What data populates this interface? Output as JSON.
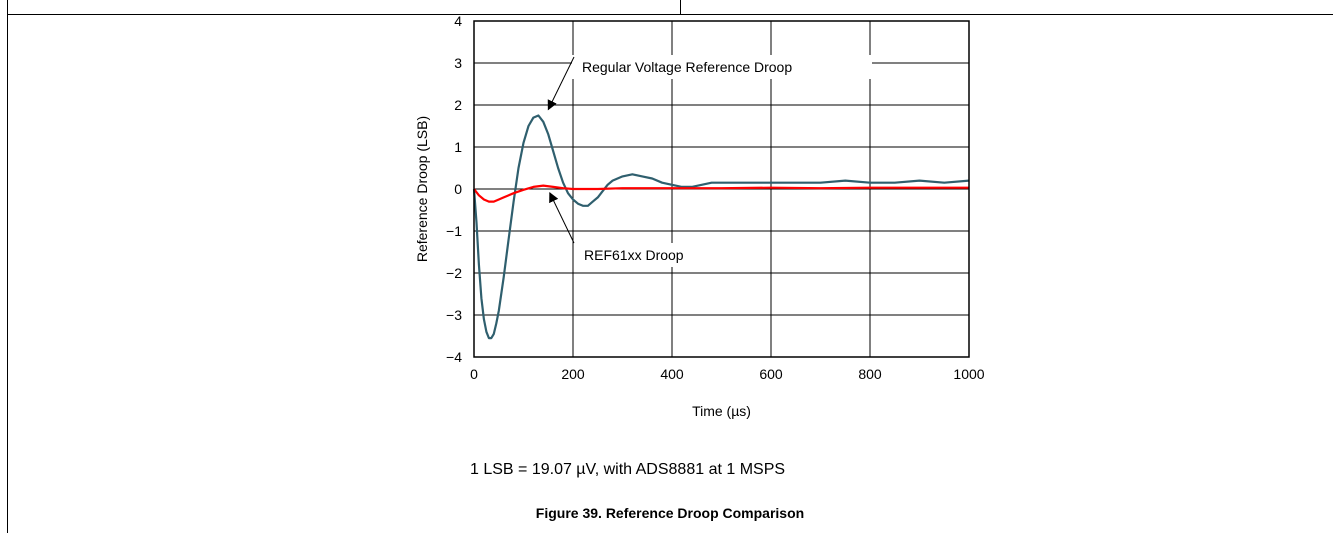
{
  "chart_data": {
    "type": "line",
    "xlabel": "Time (µs)",
    "ylabel": "Reference Droop (LSB)",
    "xlim": [
      0,
      1000
    ],
    "ylim": [
      -4,
      4
    ],
    "xticks": [
      0,
      200,
      400,
      600,
      800,
      1000
    ],
    "yticks": [
      -4,
      -3,
      -2,
      -1,
      0,
      1,
      2,
      3,
      4
    ],
    "x_tick_labels": [
      "0",
      "200",
      "400",
      "600",
      "800",
      "1000"
    ],
    "y_tick_labels": [
      "−4",
      "−3",
      "−2",
      "−1",
      "0",
      "1",
      "2",
      "3",
      "4"
    ],
    "grid": true,
    "series": [
      {
        "name": "Regular Voltage Reference Droop",
        "color": "#2f5f6e",
        "x": [
          0,
          5,
          10,
          15,
          20,
          25,
          30,
          35,
          40,
          45,
          50,
          60,
          70,
          80,
          90,
          100,
          110,
          120,
          130,
          140,
          150,
          160,
          170,
          180,
          190,
          200,
          210,
          220,
          230,
          240,
          250,
          260,
          270,
          280,
          300,
          320,
          340,
          360,
          380,
          400,
          420,
          440,
          460,
          480,
          500,
          550,
          600,
          650,
          700,
          750,
          800,
          850,
          900,
          950,
          1000
        ],
        "y": [
          0.0,
          -0.8,
          -1.8,
          -2.6,
          -3.1,
          -3.4,
          -3.55,
          -3.55,
          -3.45,
          -3.2,
          -2.9,
          -2.1,
          -1.2,
          -0.3,
          0.5,
          1.1,
          1.5,
          1.7,
          1.75,
          1.6,
          1.3,
          0.9,
          0.5,
          0.15,
          -0.1,
          -0.25,
          -0.35,
          -0.4,
          -0.4,
          -0.3,
          -0.2,
          -0.05,
          0.1,
          0.2,
          0.3,
          0.35,
          0.3,
          0.25,
          0.15,
          0.1,
          0.05,
          0.05,
          0.1,
          0.15,
          0.15,
          0.15,
          0.15,
          0.15,
          0.15,
          0.2,
          0.15,
          0.15,
          0.2,
          0.15,
          0.2
        ]
      },
      {
        "name": "REF61xx Droop",
        "color": "#ff0000",
        "x": [
          0,
          10,
          20,
          30,
          40,
          50,
          60,
          80,
          100,
          120,
          140,
          160,
          180,
          200,
          250,
          300,
          400,
          500,
          600,
          700,
          800,
          900,
          1000
        ],
        "y": [
          0.0,
          -0.15,
          -0.25,
          -0.3,
          -0.3,
          -0.25,
          -0.2,
          -0.1,
          -0.02,
          0.05,
          0.08,
          0.05,
          0.02,
          0.0,
          0.0,
          0.02,
          0.02,
          0.02,
          0.03,
          0.02,
          0.03,
          0.03,
          0.03
        ]
      }
    ],
    "annotations": [
      {
        "text": "Regular Voltage Reference Droop",
        "arrow_to": [
          140,
          1.75
        ]
      },
      {
        "text": "REF61xx Droop",
        "arrow_to": [
          145,
          0.05
        ]
      }
    ]
  },
  "footnote": "1 LSB = 19.07 µV, with ADS8881 at 1 MSPS",
  "caption": "Figure 39. Reference Droop Comparison"
}
